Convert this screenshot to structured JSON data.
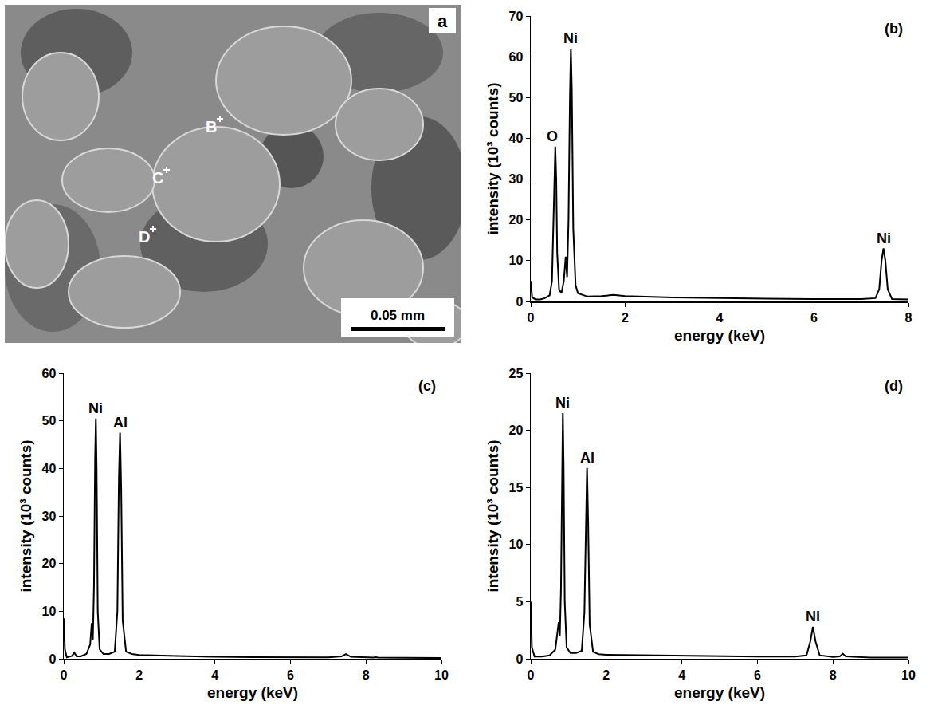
{
  "image": {
    "label": "a",
    "points": [
      "B",
      "C",
      "D"
    ],
    "scale_bar": "0.05 mm"
  },
  "chart_data": [
    {
      "type": "line",
      "label": "(b)",
      "xlabel": "energy (keV)",
      "ylabel": "intensity (10³ counts)",
      "color": "#000000",
      "grid": false,
      "xlim": [
        0,
        8
      ],
      "xticks": [
        0,
        2,
        4,
        6,
        8
      ],
      "ylim": [
        0,
        70
      ],
      "yticks": [
        0,
        10,
        20,
        30,
        40,
        50,
        60,
        70
      ],
      "x": [
        0,
        0.03,
        0.1,
        0.2,
        0.3,
        0.4,
        0.45,
        0.48,
        0.5,
        0.52,
        0.54,
        0.56,
        0.6,
        0.65,
        0.7,
        0.74,
        0.77,
        0.8,
        0.83,
        0.85,
        0.87,
        0.9,
        0.95,
        1.0,
        1.2,
        1.5,
        1.75,
        2,
        3,
        4,
        5,
        6,
        7,
        7.3,
        7.38,
        7.43,
        7.47,
        7.51,
        7.56,
        7.65,
        8
      ],
      "values": [
        5,
        1,
        0.5,
        0.5,
        0.8,
        1.5,
        5,
        20,
        34,
        38,
        30,
        12,
        3,
        2,
        5,
        11,
        6,
        20,
        50,
        62,
        52,
        18,
        4,
        2,
        1.2,
        1.3,
        1.6,
        1.3,
        1,
        0.8,
        0.7,
        0.6,
        0.6,
        0.8,
        3,
        10,
        13,
        10,
        3,
        0.6,
        0.5
      ],
      "annotations": [
        {
          "text": "O",
          "x": 0.45,
          "y": 38
        },
        {
          "text": "Ni",
          "x": 0.85,
          "y": 62
        },
        {
          "text": "Ni",
          "x": 7.47,
          "y": 13
        }
      ]
    },
    {
      "type": "line",
      "label": "(c)",
      "xlabel": "energy (keV)",
      "ylabel": "intensity (10³ counts)",
      "color": "#000000",
      "grid": false,
      "xlim": [
        0,
        10
      ],
      "xticks": [
        0,
        2,
        4,
        6,
        8,
        10
      ],
      "ylim": [
        0,
        60
      ],
      "yticks": [
        0,
        10,
        20,
        30,
        40,
        50,
        60
      ],
      "x": [
        0,
        0.03,
        0.08,
        0.15,
        0.22,
        0.28,
        0.34,
        0.45,
        0.6,
        0.7,
        0.74,
        0.77,
        0.8,
        0.83,
        0.85,
        0.87,
        0.9,
        0.95,
        1.05,
        1.2,
        1.35,
        1.42,
        1.46,
        1.49,
        1.52,
        1.56,
        1.65,
        1.8,
        2,
        3,
        4,
        5,
        6,
        7,
        7.35,
        7.47,
        7.6,
        8,
        8.2,
        8.26,
        8.32,
        9,
        10
      ],
      "values": [
        8.5,
        2,
        0.3,
        0.4,
        0.6,
        1.3,
        0.5,
        0.5,
        1,
        3,
        7.5,
        4,
        15,
        42,
        50.5,
        40,
        10,
        2,
        1,
        1,
        1.5,
        10,
        38,
        47.5,
        36,
        8,
        1.5,
        1,
        0.8,
        0.6,
        0.4,
        0.35,
        0.3,
        0.3,
        0.5,
        1,
        0.4,
        0.25,
        0.25,
        0.35,
        0.25,
        0.2,
        0.15
      ],
      "annotations": [
        {
          "text": "Ni",
          "x": 0.85,
          "y": 50.5
        },
        {
          "text": "Al",
          "x": 1.49,
          "y": 47.5
        }
      ]
    },
    {
      "type": "line",
      "label": "(d)",
      "xlabel": "energy (keV)",
      "ylabel": "intensity (10³ counts)",
      "color": "#000000",
      "grid": false,
      "xlim": [
        0,
        10
      ],
      "xticks": [
        0,
        2,
        4,
        6,
        8,
        10
      ],
      "ylim": [
        0,
        25
      ],
      "yticks": [
        0,
        5,
        10,
        15,
        20,
        25
      ],
      "x": [
        0,
        0.03,
        0.1,
        0.3,
        0.5,
        0.65,
        0.74,
        0.77,
        0.8,
        0.83,
        0.85,
        0.87,
        0.9,
        0.95,
        1.05,
        1.2,
        1.35,
        1.42,
        1.46,
        1.49,
        1.52,
        1.56,
        1.65,
        1.8,
        2,
        3,
        4,
        5,
        6,
        7,
        7.3,
        7.4,
        7.47,
        7.54,
        7.65,
        8,
        8.18,
        8.26,
        8.34,
        9,
        10
      ],
      "values": [
        5,
        1,
        0.2,
        0.2,
        0.3,
        0.8,
        3.2,
        2,
        6,
        18,
        21.5,
        17,
        5,
        1,
        0.5,
        0.5,
        0.7,
        4,
        13,
        16.7,
        12,
        3,
        0.6,
        0.4,
        0.35,
        0.3,
        0.25,
        0.2,
        0.2,
        0.2,
        0.3,
        1.5,
        2.8,
        1.5,
        0.3,
        0.15,
        0.2,
        0.45,
        0.2,
        0.1,
        0.1
      ],
      "annotations": [
        {
          "text": "Ni",
          "x": 0.85,
          "y": 21.5
        },
        {
          "text": "Al",
          "x": 1.49,
          "y": 16.7
        },
        {
          "text": "Ni",
          "x": 7.47,
          "y": 2.8
        }
      ]
    }
  ]
}
